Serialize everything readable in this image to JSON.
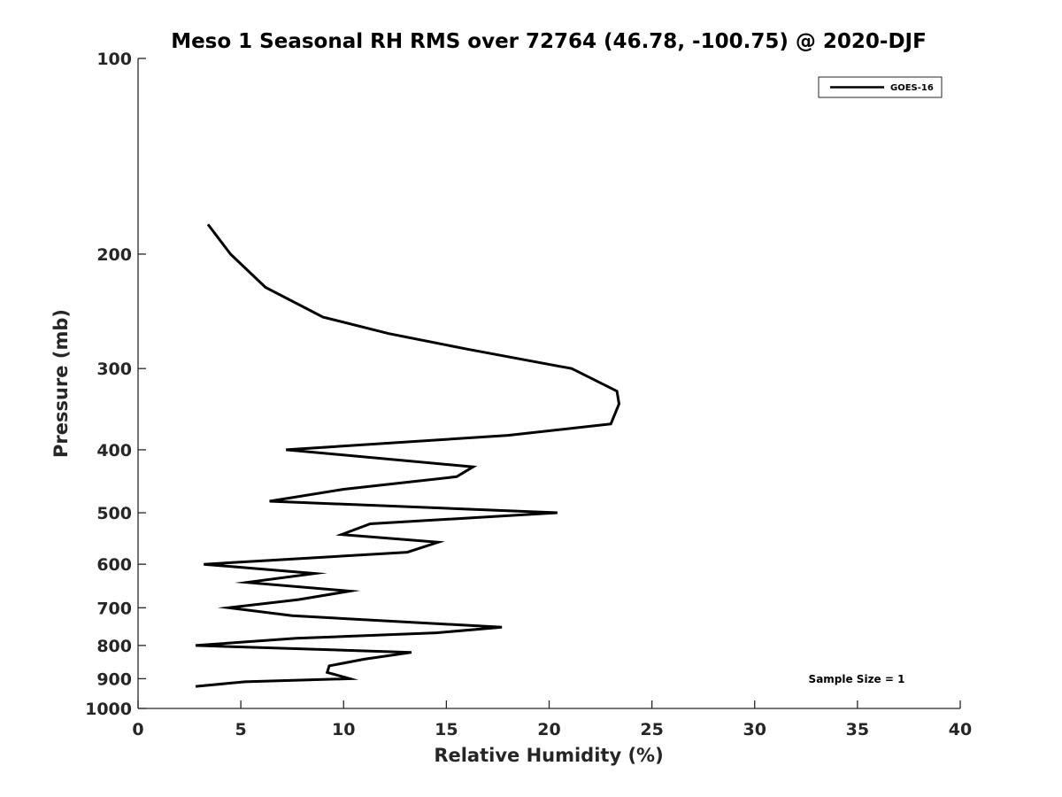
{
  "chart_data": {
    "type": "line",
    "title": "Meso 1 Seasonal RH RMS over 72764 (46.78, -100.75) @ 2020-DJF",
    "xlabel": "Relative Humidity (%)",
    "ylabel": "Pressure (mb)",
    "xlim": [
      0,
      40
    ],
    "ylim": [
      100,
      1000
    ],
    "y_scale": "log",
    "y_reversed": true,
    "x_ticks": [
      0,
      5,
      10,
      15,
      20,
      25,
      30,
      35,
      40
    ],
    "y_ticks": [
      100,
      200,
      300,
      400,
      500,
      600,
      700,
      800,
      900,
      1000
    ],
    "grid": false,
    "legend_position": "top-right",
    "series": [
      {
        "name": "GOES-16",
        "color": "#000000",
        "points": [
          {
            "x": 3.4,
            "y": 180
          },
          {
            "x": 4.5,
            "y": 200
          },
          {
            "x": 6.2,
            "y": 225
          },
          {
            "x": 9.0,
            "y": 250
          },
          {
            "x": 12.2,
            "y": 265
          },
          {
            "x": 16.0,
            "y": 280
          },
          {
            "x": 21.1,
            "y": 300
          },
          {
            "x": 23.3,
            "y": 325
          },
          {
            "x": 23.4,
            "y": 340
          },
          {
            "x": 23.0,
            "y": 365
          },
          {
            "x": 18.0,
            "y": 380
          },
          {
            "x": 7.2,
            "y": 400
          },
          {
            "x": 16.3,
            "y": 425
          },
          {
            "x": 15.5,
            "y": 440
          },
          {
            "x": 10.0,
            "y": 460
          },
          {
            "x": 6.4,
            "y": 480
          },
          {
            "x": 20.4,
            "y": 500
          },
          {
            "x": 11.3,
            "y": 520
          },
          {
            "x": 9.9,
            "y": 540
          },
          {
            "x": 14.6,
            "y": 555
          },
          {
            "x": 13.1,
            "y": 575
          },
          {
            "x": 3.2,
            "y": 600
          },
          {
            "x": 8.6,
            "y": 620
          },
          {
            "x": 5.3,
            "y": 640
          },
          {
            "x": 10.3,
            "y": 660
          },
          {
            "x": 7.8,
            "y": 680
          },
          {
            "x": 4.4,
            "y": 700
          },
          {
            "x": 7.5,
            "y": 720
          },
          {
            "x": 17.7,
            "y": 750
          },
          {
            "x": 14.5,
            "y": 765
          },
          {
            "x": 7.7,
            "y": 780
          },
          {
            "x": 2.8,
            "y": 800
          },
          {
            "x": 13.3,
            "y": 820
          },
          {
            "x": 11.0,
            "y": 840
          },
          {
            "x": 9.3,
            "y": 860
          },
          {
            "x": 9.2,
            "y": 880
          },
          {
            "x": 10.3,
            "y": 900
          },
          {
            "x": 5.2,
            "y": 910
          },
          {
            "x": 2.8,
            "y": 925
          }
        ]
      }
    ],
    "annotations": [
      {
        "text": "Sample Size = 1",
        "position": "bottom-right"
      }
    ]
  }
}
